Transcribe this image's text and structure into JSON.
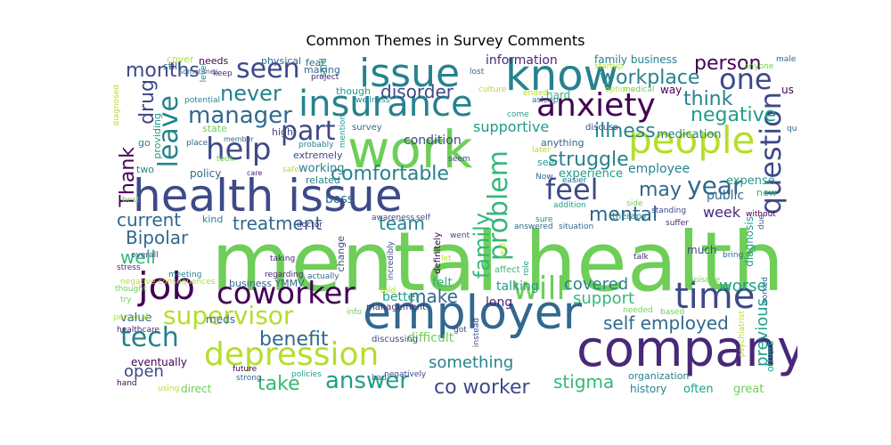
{
  "title": "Common Themes in Survey Comments",
  "palette": [
    "#440154",
    "#482878",
    "#3e4989",
    "#31688e",
    "#26828e",
    "#1f9e89",
    "#35b779",
    "#6ece58",
    "#b5de2b",
    "#fde725"
  ],
  "words": [
    {
      "text": "mental health",
      "weight": 100
    },
    {
      "text": "health issue",
      "weight": 62
    },
    {
      "text": "work",
      "weight": 52
    },
    {
      "text": "company",
      "weight": 50
    },
    {
      "text": "employer",
      "weight": 50
    },
    {
      "text": "issue",
      "weight": 40
    },
    {
      "text": "know",
      "weight": 42
    },
    {
      "text": "people",
      "weight": 38
    },
    {
      "text": "insurance",
      "weight": 36
    },
    {
      "text": "anxiety",
      "weight": 33
    },
    {
      "text": "job",
      "weight": 38
    },
    {
      "text": "coworker",
      "weight": 34
    },
    {
      "text": "depression",
      "weight": 33
    },
    {
      "text": "time",
      "weight": 34
    },
    {
      "text": "question",
      "weight": 30
    },
    {
      "text": "problem",
      "weight": 28
    },
    {
      "text": "leave",
      "weight": 26
    },
    {
      "text": "help",
      "weight": 28
    },
    {
      "text": "manager",
      "weight": 26
    },
    {
      "text": "seen",
      "weight": 26
    },
    {
      "text": "one",
      "weight": 26
    },
    {
      "text": "supervisor",
      "weight": 26
    },
    {
      "text": "tech",
      "weight": 26
    },
    {
      "text": "feel",
      "weight": 26
    },
    {
      "text": "will",
      "weight": 26
    },
    {
      "text": "part",
      "weight": 24
    },
    {
      "text": "never",
      "weight": 22
    },
    {
      "text": "answer",
      "weight": 22
    },
    {
      "text": "year",
      "weight": 22
    },
    {
      "text": "workplace",
      "weight": 20
    },
    {
      "text": "person",
      "weight": 20
    },
    {
      "text": "family",
      "weight": 20
    },
    {
      "text": "comfortable",
      "weight": 20
    },
    {
      "text": "struggle",
      "weight": 20
    },
    {
      "text": "self employed",
      "weight": 20
    },
    {
      "text": "co worker",
      "weight": 20
    },
    {
      "text": "take",
      "weight": 18
    },
    {
      "text": "mental",
      "weight": 18
    },
    {
      "text": "disorder",
      "weight": 18
    },
    {
      "text": "illness",
      "weight": 18
    },
    {
      "text": "think",
      "weight": 18
    },
    {
      "text": "negative",
      "weight": 18
    },
    {
      "text": "benefit",
      "weight": 18
    },
    {
      "text": "drug",
      "weight": 16
    },
    {
      "text": "Thank",
      "weight": 18
    },
    {
      "text": "months",
      "weight": 18
    },
    {
      "text": "Bipolar",
      "weight": 16
    },
    {
      "text": "current",
      "weight": 16
    },
    {
      "text": "treatment",
      "weight": 16
    },
    {
      "text": "may",
      "weight": 16
    },
    {
      "text": "team",
      "weight": 16
    },
    {
      "text": "well",
      "weight": 16
    },
    {
      "text": "make",
      "weight": 16
    },
    {
      "text": "something",
      "weight": 16
    },
    {
      "text": "stigma",
      "weight": 16
    },
    {
      "text": "covered",
      "weight": 14
    },
    {
      "text": "worse",
      "weight": 14
    },
    {
      "text": "support",
      "weight": 14
    },
    {
      "text": "previous",
      "weight": 14
    },
    {
      "text": "week",
      "weight": 14
    },
    {
      "text": "open",
      "weight": 14
    },
    {
      "text": "information",
      "weight": 12
    },
    {
      "text": "family business",
      "weight": 11
    },
    {
      "text": "supportive",
      "weight": 12
    },
    {
      "text": "condition",
      "weight": 12
    },
    {
      "text": "long",
      "weight": 12
    },
    {
      "text": "better",
      "weight": 12
    },
    {
      "text": "felt",
      "weight": 12
    },
    {
      "text": "talking",
      "weight": 12
    },
    {
      "text": "difficult",
      "weight": 12
    },
    {
      "text": "boss",
      "weight": 12
    },
    {
      "text": "working",
      "weight": 11
    },
    {
      "text": "employee",
      "weight": 11
    },
    {
      "text": "experience",
      "weight": 11
    },
    {
      "text": "public",
      "weight": 11
    },
    {
      "text": "expense",
      "weight": 11
    },
    {
      "text": "medication",
      "weight": 11
    },
    {
      "text": "history",
      "weight": 10
    },
    {
      "text": "often",
      "weight": 10
    },
    {
      "text": "great",
      "weight": 10
    },
    {
      "text": "eventually",
      "weight": 10
    },
    {
      "text": "direct",
      "weight": 10
    },
    {
      "text": "value",
      "weight": 10
    },
    {
      "text": "meds",
      "weight": 10
    },
    {
      "text": "policy",
      "weight": 10
    },
    {
      "text": "business YMMV",
      "weight": 9
    },
    {
      "text": "needs",
      "weight": 9
    },
    {
      "text": "physical",
      "weight": 9
    },
    {
      "text": "still",
      "weight": 9
    },
    {
      "text": "cover",
      "weight": 9
    },
    {
      "text": "fear",
      "weight": 9
    },
    {
      "text": "said",
      "weight": 9
    },
    {
      "text": "making",
      "weight": 9
    },
    {
      "text": "though",
      "weight": 9
    },
    {
      "text": "state",
      "weight": 9
    },
    {
      "text": "high",
      "weight": 9
    },
    {
      "text": "extremely",
      "weight": 9
    },
    {
      "text": "related",
      "weight": 9
    },
    {
      "text": "kind",
      "weight": 9
    },
    {
      "text": "two",
      "weight": 9
    },
    {
      "text": "go",
      "weight": 9
    },
    {
      "text": "providing",
      "weight": 9
    },
    {
      "text": "much",
      "weight": 10
    },
    {
      "text": "way",
      "weight": 10
    },
    {
      "text": "us",
      "weight": 9
    },
    {
      "text": "hard",
      "weight": 9
    },
    {
      "text": "anything",
      "weight": 9
    },
    {
      "text": "see",
      "weight": 9
    },
    {
      "text": "new",
      "weight": 9
    },
    {
      "text": "diagnosis",
      "weight": 9
    },
    {
      "text": "organization",
      "weight": 9
    },
    {
      "text": "others",
      "weight": 9
    },
    {
      "text": "change",
      "weight": 9
    },
    {
      "text": "definitely",
      "weight": 8
    },
    {
      "text": "affect",
      "weight": 8
    },
    {
      "text": "discuss",
      "weight": 8
    },
    {
      "text": "therapy",
      "weight": 8
    },
    {
      "text": "survey",
      "weight": 8
    },
    {
      "text": "care",
      "weight": 7
    },
    {
      "text": "member",
      "weight": 7
    },
    {
      "text": "place",
      "weight": 7
    },
    {
      "text": "took",
      "weight": 7
    },
    {
      "text": "potential",
      "weight": 7
    },
    {
      "text": "keep",
      "weight": 7
    },
    {
      "text": "level",
      "weight": 7
    },
    {
      "text": "diagnosed",
      "weight": 7
    },
    {
      "text": "best",
      "weight": 7
    },
    {
      "text": "doctor",
      "weight": 7
    },
    {
      "text": "actually",
      "weight": 7
    },
    {
      "text": "stress",
      "weight": 7
    },
    {
      "text": "overall",
      "weight": 7
    },
    {
      "text": "meeting",
      "weight": 7
    },
    {
      "text": "negative consequences",
      "weight": 7
    },
    {
      "text": "thought",
      "weight": 7
    },
    {
      "text": "try",
      "weight": 7
    },
    {
      "text": "healthcare",
      "weight": 7
    },
    {
      "text": "personal",
      "weight": 7
    },
    {
      "text": "hand",
      "weight": 7
    },
    {
      "text": "using",
      "weight": 7
    },
    {
      "text": "future",
      "weight": 7
    },
    {
      "text": "strong",
      "weight": 7
    },
    {
      "text": "policies",
      "weight": 7
    },
    {
      "text": "bad",
      "weight": 7
    },
    {
      "text": "negatively",
      "weight": 7
    },
    {
      "text": "management",
      "weight": 8
    },
    {
      "text": "discussing",
      "weight": 8
    },
    {
      "text": "info",
      "weight": 7
    },
    {
      "text": "taking",
      "weight": 7
    },
    {
      "text": "regarding",
      "weight": 7
    },
    {
      "text": "incredibly",
      "weight": 7
    },
    {
      "text": "told",
      "weight": 7
    },
    {
      "text": "instead",
      "weight": 7
    },
    {
      "text": "got",
      "weight": 7
    },
    {
      "text": "let",
      "weight": 7
    },
    {
      "text": "went",
      "weight": 7
    },
    {
      "text": "real",
      "weight": 7
    },
    {
      "text": "role",
      "weight": 7
    },
    {
      "text": "talk",
      "weight": 7
    },
    {
      "text": "bring",
      "weight": 7
    },
    {
      "text": "suffer",
      "weight": 7
    },
    {
      "text": "standing",
      "weight": 7
    },
    {
      "text": "without",
      "weight": 7
    },
    {
      "text": "worked",
      "weight": 7
    },
    {
      "text": "due",
      "weight": 7
    },
    {
      "text": "episode",
      "weight": 7
    },
    {
      "text": "needed",
      "weight": 7
    },
    {
      "text": "based",
      "weight": 7
    },
    {
      "text": "psychiatrist",
      "weight": 7
    },
    {
      "text": "answered",
      "weight": 7
    },
    {
      "text": "situation",
      "weight": 7
    },
    {
      "text": "awareness",
      "weight": 7
    },
    {
      "text": "self",
      "weight": 7
    },
    {
      "text": "sure",
      "weight": 7
    },
    {
      "text": "addition",
      "weight": 7
    },
    {
      "text": "side",
      "weight": 7
    },
    {
      "text": "easier",
      "weight": 7
    },
    {
      "text": "later",
      "weight": 7
    },
    {
      "text": "Now",
      "weight": 7
    },
    {
      "text": "seem",
      "weight": 7
    },
    {
      "text": "safe",
      "weight": 7
    },
    {
      "text": "probably",
      "weight": 7
    },
    {
      "text": "quite",
      "weight": 7
    },
    {
      "text": "medical",
      "weight": 7
    },
    {
      "text": "options",
      "weight": 7
    },
    {
      "text": "ended",
      "weight": 7
    },
    {
      "text": "culture",
      "weight": 7
    },
    {
      "text": "asleep",
      "weight": 7
    },
    {
      "text": "come",
      "weight": 7
    },
    {
      "text": "lost",
      "weight": 7
    },
    {
      "text": "project",
      "weight": 7
    },
    {
      "text": "wellness",
      "weight": 7
    },
    {
      "text": "sometimes",
      "weight": 7
    },
    {
      "text": "startup",
      "weight": 7
    },
    {
      "text": "anyone",
      "weight": 7
    },
    {
      "text": "male",
      "weight": 7
    },
    {
      "text": "mention",
      "weight": 7
    }
  ]
}
